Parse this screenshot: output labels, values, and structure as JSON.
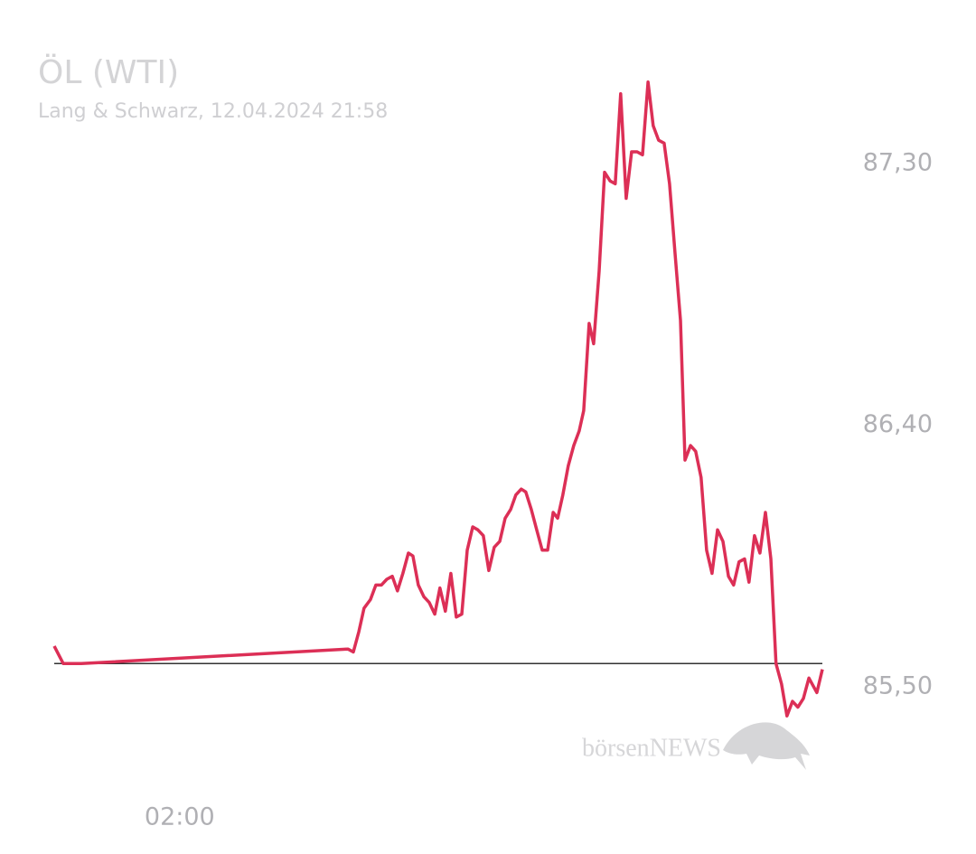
{
  "chart_data": {
    "type": "line",
    "title": "ÖL (WTI)",
    "subtitle": "Lang & Schwarz, 12.04.2024 21:58",
    "watermark": "börsenNEWS",
    "color": "#dc2f56",
    "reference_line": 85.58,
    "reference_color": "#333333",
    "grid": false,
    "xlim": [
      -1.9,
      21.98
    ],
    "xticks": [
      {
        "value": 2,
        "label": "02:00"
      }
    ],
    "ylim": [
      85.2,
      87.6
    ],
    "yticks": [
      {
        "value": 85.5,
        "label": "85,50"
      },
      {
        "value": 86.4,
        "label": "86,40"
      },
      {
        "value": 87.3,
        "label": "87,30"
      }
    ],
    "x": [
      -1.9,
      -1.62,
      -1.06,
      7.23,
      7.4,
      7.57,
      7.73,
      7.93,
      8.1,
      8.27,
      8.44,
      8.61,
      8.77,
      8.94,
      9.11,
      9.25,
      9.42,
      9.59,
      9.76,
      9.93,
      10.09,
      10.26,
      10.43,
      10.6,
      10.77,
      10.94,
      11.11,
      11.27,
      11.44,
      11.61,
      11.78,
      11.95,
      12.12,
      12.29,
      12.45,
      12.62,
      12.76,
      12.93,
      13.1,
      13.27,
      13.44,
      13.61,
      13.75,
      13.91,
      14.08,
      14.25,
      14.42,
      14.56,
      14.73,
      14.87,
      15.04,
      15.21,
      15.38,
      15.54,
      15.71,
      15.88,
      16.05,
      16.22,
      16.39,
      16.56,
      16.72,
      16.89,
      17.06,
      17.23,
      17.4,
      17.57,
      17.71,
      17.88,
      18.04,
      18.21,
      18.38,
      18.55,
      18.72,
      18.89,
      19.06,
      19.22,
      19.39,
      19.56,
      19.7,
      19.87,
      20.04,
      20.21,
      20.38,
      20.54,
      20.71,
      20.88,
      21.05,
      21.22,
      21.39,
      21.56,
      21.81,
      21.98
    ],
    "values": [
      85.64,
      85.58,
      85.58,
      85.63,
      85.62,
      85.69,
      85.77,
      85.8,
      85.85,
      85.85,
      85.87,
      85.88,
      85.83,
      85.89,
      85.96,
      85.95,
      85.85,
      85.81,
      85.79,
      85.75,
      85.84,
      85.76,
      85.89,
      85.74,
      85.75,
      85.97,
      86.05,
      86.04,
      86.02,
      85.9,
      85.98,
      86.0,
      86.08,
      86.11,
      86.16,
      86.18,
      86.17,
      86.11,
      86.04,
      85.97,
      85.97,
      86.1,
      86.08,
      86.16,
      86.26,
      86.33,
      86.38,
      86.45,
      86.75,
      86.68,
      86.93,
      87.27,
      87.24,
      87.23,
      87.54,
      87.18,
      87.34,
      87.34,
      87.33,
      87.58,
      87.43,
      87.38,
      87.37,
      87.23,
      86.99,
      86.76,
      86.28,
      86.33,
      86.31,
      86.22,
      85.97,
      85.89,
      86.04,
      86.0,
      85.88,
      85.85,
      85.93,
      85.94,
      85.86,
      86.02,
      85.96,
      86.1,
      85.94,
      85.58,
      85.51,
      85.4,
      85.45,
      85.43,
      85.46,
      85.53,
      85.48,
      85.56
    ]
  }
}
